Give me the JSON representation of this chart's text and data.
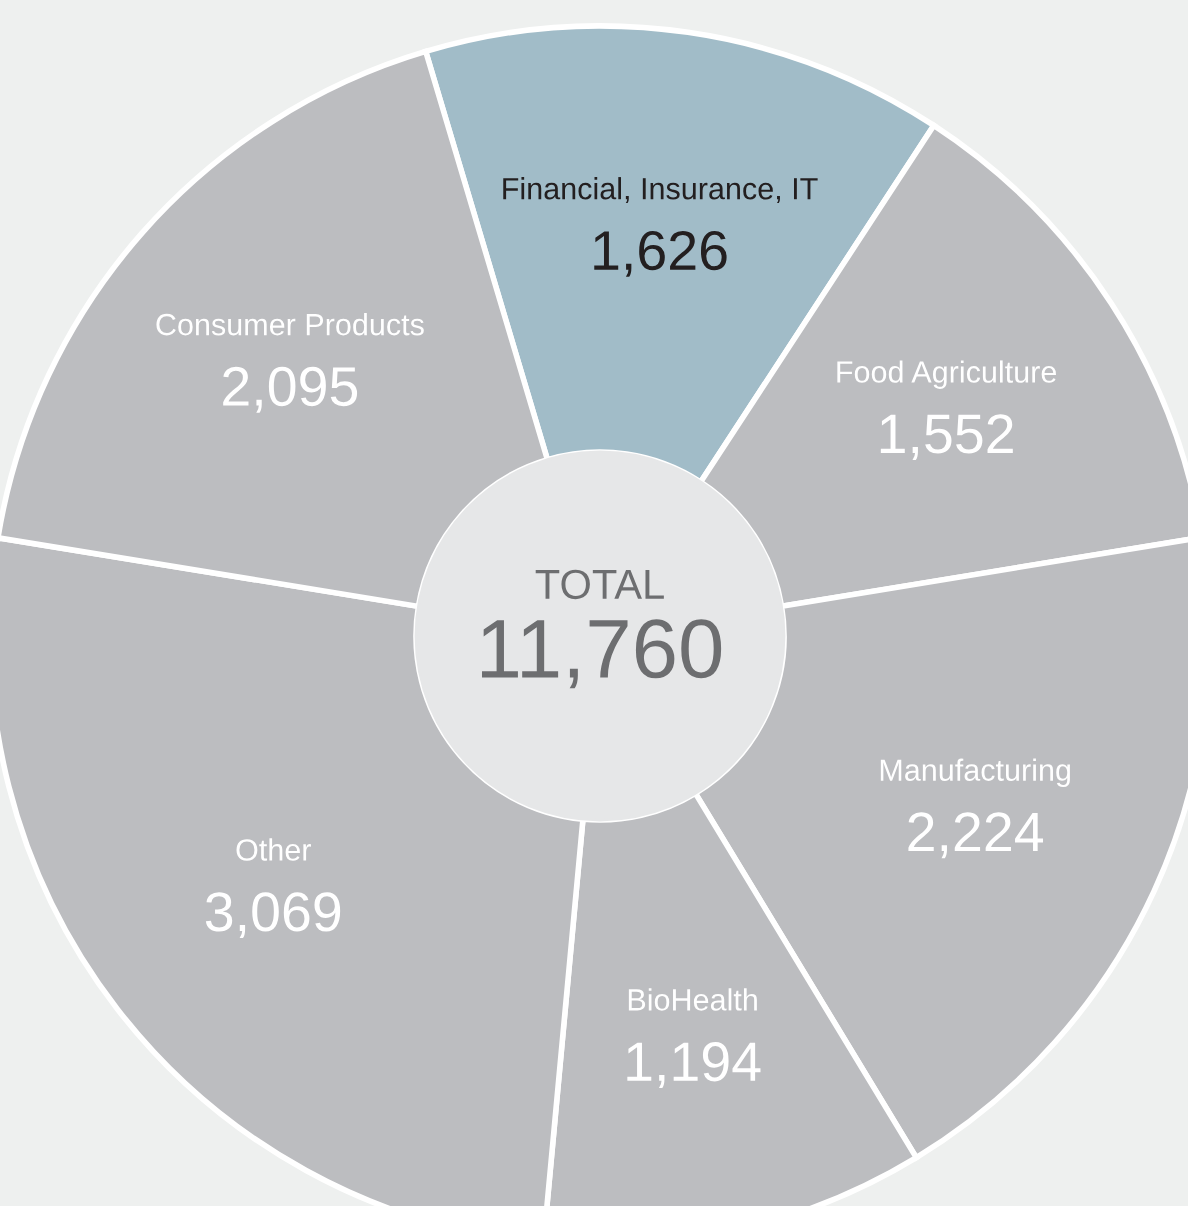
{
  "chart_data": {
    "type": "donut",
    "categories": [
      "Financial, Insurance, IT",
      "Food Agriculture",
      "Manufacturing",
      "BioHealth",
      "Other",
      "Consumer Products"
    ],
    "values": [
      1626,
      1552,
      2224,
      1194,
      3069,
      2095
    ],
    "colors": [
      "#a1bcc8",
      "#bcbdc0",
      "#bcbdc0",
      "#bcbdc0",
      "#bcbdc0",
      "#bcbdc0"
    ],
    "value_labels": [
      "1,626",
      "1,552",
      "2,224",
      "1,194",
      "3,069",
      "2,095"
    ],
    "annotations": [
      "TOTAL",
      "11,760"
    ]
  }
}
